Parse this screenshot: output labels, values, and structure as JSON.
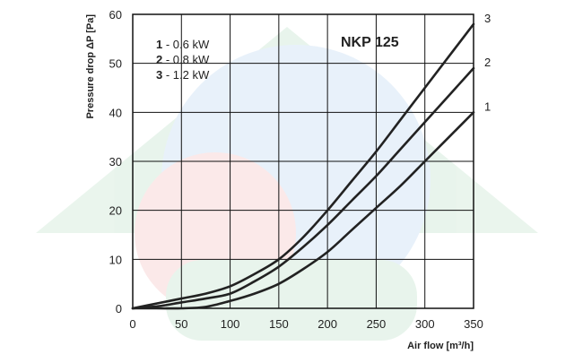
{
  "chart_data": {
    "type": "line",
    "title": "NKP 125",
    "xlabel": "Air flow [m³/h]",
    "ylabel": "Pressure drop ΔP [Pa]",
    "xlim": [
      0,
      350
    ],
    "ylim": [
      0,
      60
    ],
    "x_ticks": [
      "0",
      "50",
      "100",
      "150",
      "200",
      "250",
      "300",
      "350"
    ],
    "y_ticks": [
      "0",
      "10",
      "20",
      "30",
      "40",
      "50",
      "60"
    ],
    "grid": true,
    "legend": {
      "placement": "top-left",
      "entries": [
        {
          "key": "1",
          "text": " - 0.6 kW"
        },
        {
          "key": "2",
          "text": " - 0.8 kW"
        },
        {
          "key": "3",
          "text": " - 1.2 kW"
        }
      ]
    },
    "series": [
      {
        "label": "1",
        "x": [
          0,
          25,
          50,
          75,
          100,
          125,
          150,
          175,
          200,
          225,
          250,
          275,
          300,
          325,
          350
        ],
        "y": [
          0,
          0,
          0,
          0.3,
          1.5,
          3,
          5,
          8,
          11.5,
          16,
          20.5,
          25,
          30,
          35,
          40
        ]
      },
      {
        "label": "2",
        "x": [
          0,
          25,
          50,
          75,
          100,
          125,
          150,
          175,
          200,
          225,
          250,
          275,
          300,
          325,
          350
        ],
        "y": [
          0,
          0.4,
          1.2,
          2,
          3,
          5.5,
          8.5,
          12.5,
          17,
          22,
          27,
          32.5,
          38,
          43.5,
          49
        ]
      },
      {
        "label": "3",
        "x": [
          0,
          25,
          50,
          75,
          100,
          125,
          150,
          175,
          200,
          225,
          250,
          275,
          300,
          325,
          350
        ],
        "y": [
          0,
          1,
          2,
          3,
          4.5,
          7,
          10,
          14.5,
          20,
          26,
          32,
          38.5,
          45,
          51.5,
          58
        ]
      }
    ]
  }
}
